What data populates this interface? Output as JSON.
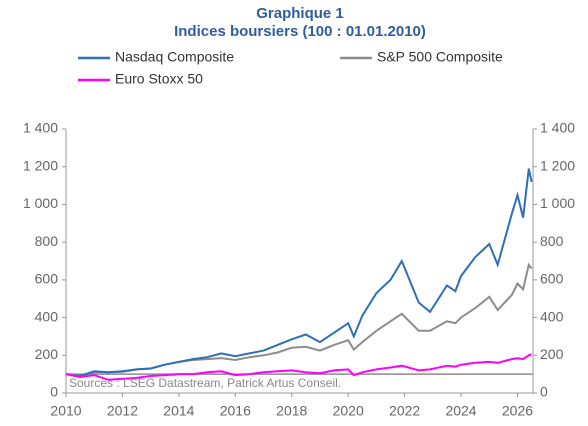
{
  "chart_data": {
    "type": "line",
    "title": "Graphique 1",
    "subtitle": "Indices boursiers (100 : 01.01.2010)",
    "annotation": "Sources : LSEG Datastream, Patrick Artus Conseil.",
    "reference_line": 100,
    "x": [
      2010,
      2010.5,
      2011,
      2011.5,
      2012,
      2012.5,
      2013,
      2013.5,
      2014,
      2014.5,
      2015,
      2015.5,
      2016,
      2016.5,
      2017,
      2017.5,
      2018,
      2018.5,
      2019,
      2019.5,
      2020,
      2020.2,
      2020.5,
      2021,
      2021.5,
      2021.9,
      2022.5,
      2022.9,
      2023.5,
      2023.8,
      2024,
      2024.5,
      2025,
      2025.3,
      2025.8,
      2026,
      2026.2,
      2026.4,
      2026.5
    ],
    "series": [
      {
        "name": "Nasdaq Composite",
        "color": "#2e6fb5",
        "values": [
          100,
          90,
          115,
          110,
          115,
          125,
          130,
          150,
          165,
          180,
          190,
          210,
          195,
          210,
          225,
          255,
          285,
          310,
          270,
          320,
          370,
          300,
          410,
          530,
          600,
          700,
          480,
          430,
          570,
          540,
          620,
          720,
          790,
          680,
          950,
          1050,
          930,
          1190,
          1120
        ]
      },
      {
        "name": "S&P 500 Composite",
        "color": "#8c8c8c",
        "values": [
          100,
          92,
          110,
          110,
          112,
          125,
          130,
          150,
          165,
          175,
          180,
          185,
          175,
          190,
          200,
          215,
          240,
          245,
          225,
          255,
          280,
          230,
          270,
          330,
          380,
          420,
          330,
          330,
          380,
          370,
          400,
          450,
          510,
          440,
          520,
          580,
          550,
          680,
          660
        ]
      },
      {
        "name": "Euro Stoxx 50",
        "color": "#ff00ff",
        "values": [
          100,
          85,
          95,
          70,
          75,
          80,
          90,
          95,
          100,
          100,
          110,
          115,
          95,
          100,
          110,
          115,
          120,
          110,
          105,
          120,
          125,
          95,
          110,
          125,
          135,
          145,
          120,
          125,
          145,
          140,
          150,
          160,
          165,
          160,
          180,
          185,
          180,
          200,
          205
        ]
      }
    ],
    "xlim": [
      2010,
      2026.55
    ],
    "xticks": [
      2010,
      2012,
      2014,
      2016,
      2018,
      2020,
      2022,
      2024,
      2026
    ],
    "ylim": [
      0,
      1400
    ],
    "yticks": [
      0,
      200,
      400,
      600,
      800,
      {
        "value": 1000,
        "label": "1 000"
      },
      {
        "value": 1200,
        "label": "1 200"
      },
      {
        "value": 1400,
        "label": "1 400"
      }
    ],
    "y2lim": [
      0,
      1400
    ],
    "y2ticks": [
      0,
      200,
      400,
      600,
      800,
      {
        "value": 1000,
        "label": "1 000"
      },
      {
        "value": 1200,
        "label": "1 200"
      },
      {
        "value": 1400,
        "label": "1 400"
      }
    ]
  }
}
